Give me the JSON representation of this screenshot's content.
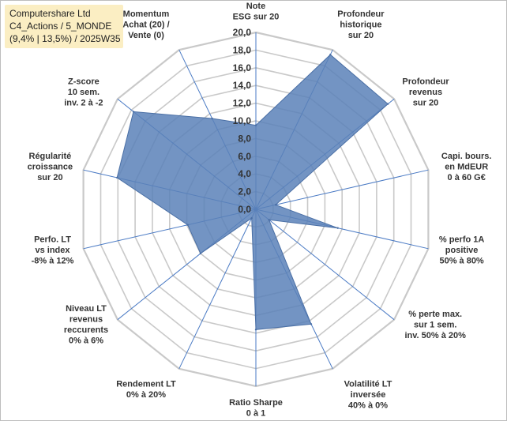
{
  "title_box": {
    "line1": "Computershare Ltd",
    "line2": "C4_Actions / 5_MONDE",
    "line3": "(9,4% | 13,5%) / 2025W35"
  },
  "chart_data": {
    "type": "radar",
    "rmin": 0,
    "rmax": 20,
    "tick_labels": [
      "0,0",
      "2,0",
      "4,0",
      "6,0",
      "8,0",
      "10,0",
      "12,0",
      "14,0",
      "16,0",
      "18,0",
      "20,0"
    ],
    "axes": [
      [
        "Note",
        "ESG sur 20"
      ],
      [
        "Profondeur",
        "historique",
        "sur 20"
      ],
      [
        "Profondeur",
        "revenus",
        "sur 20"
      ],
      [
        "Capi. bours.",
        "en MdEUR",
        "0 à 60 G€"
      ],
      [
        "% perfo 1A",
        "positive",
        "50% à 80%"
      ],
      [
        "% perte max.",
        "sur 1 sem.",
        "inv. 50% à 20%"
      ],
      [
        "Volatilité LT",
        "inversée",
        "40% à 0%"
      ],
      [
        "Ratio Sharpe",
        "0 à 1"
      ],
      [
        "Rendement LT",
        "0% à 20%"
      ],
      [
        "Niveau LT",
        "revenus",
        "reccurents",
        "0% à 6%"
      ],
      [
        "Perfo. LT",
        "vs index",
        "-8% à 12%"
      ],
      [
        "Régularité",
        "croissance",
        "sur 20"
      ],
      [
        "Z-score",
        "10 sem.",
        "inv. 2 à -2"
      ],
      [
        "Momentum",
        "Achat (20) /",
        "Vente (0)"
      ]
    ],
    "values": [
      9.5,
      19.4,
      19.1,
      2.3,
      9.5,
      1.9,
      14.4,
      13.6,
      1.1,
      8.0,
      7.9,
      16.1,
      17.7,
      11.4
    ],
    "grid": true,
    "colors": {
      "fill": "#5b81b8",
      "fill_opacity": 0.85,
      "stroke": "#4a6fa5",
      "grid": "#c9c9c9",
      "spokes": "#4a7ac4"
    }
  }
}
